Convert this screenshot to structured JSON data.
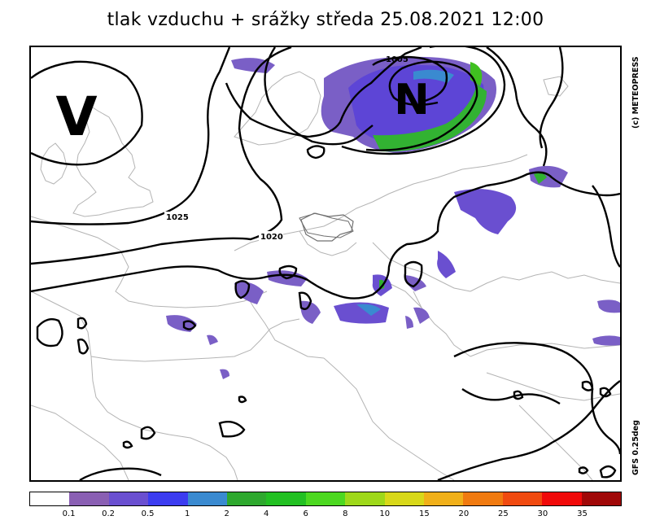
{
  "title": "tlak vzduchu + srážky  středa 25.08.2021 12:00",
  "credit_top": "(c) METEOPRESS",
  "credit_bottom": "GFS 0.25deg",
  "high_label": "V",
  "low_label": "N",
  "isobar_labels": [
    "1005",
    "1025",
    "1020"
  ],
  "legend": {
    "ticks": [
      "0.1",
      "0.2",
      "0.5",
      "1",
      "2",
      "4",
      "6",
      "8",
      "10",
      "15",
      "20",
      "25",
      "30",
      "35"
    ],
    "colors": [
      "#ffffff",
      "#8a5fb3",
      "#6a4fd0",
      "#3c3cf0",
      "#3a8ad0",
      "#2ea82e",
      "#22c022",
      "#4cd820",
      "#9ed81a",
      "#d8d81a",
      "#f0b01a",
      "#f07a10",
      "#f04a10",
      "#f00a0a",
      "#a00808"
    ]
  }
}
